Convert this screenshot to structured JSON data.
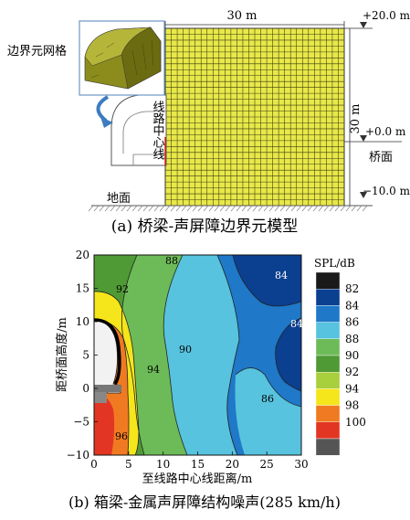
{
  "top": {
    "label_be_mesh": "边界元网格",
    "label_centerline": "线路中心线",
    "label_ground": "地面",
    "dim_width": "30 m",
    "dim_height": "30 m",
    "level_top": "+20.0 m",
    "level_mid": "+0.0 m",
    "label_deck": "桥面",
    "level_bottom": "−10.0 m",
    "caption": "(a) 桥梁-声屏障边界元模型",
    "grid_color": "#e8e84a"
  },
  "bottom": {
    "caption": "(b) 箱梁-金属声屏障结构噪声(285 km/h)",
    "legend_title": "SPL/dB",
    "legend": [
      {
        "label": "82",
        "color": "#1a1a1a"
      },
      {
        "label": "84",
        "color": "#0b3f8f"
      },
      {
        "label": "86",
        "color": "#1f78c8"
      },
      {
        "label": "88",
        "color": "#57c3de"
      },
      {
        "label": "90",
        "color": "#6dbb58"
      },
      {
        "label": "92",
        "color": "#4f9a35"
      },
      {
        "label": "94",
        "color": "#a8cf3c"
      },
      {
        "label": "98",
        "color": "#f5e51b"
      },
      {
        "label": "100",
        "color": "#f07a21"
      },
      {
        "label": "",
        "color": "#e23523"
      },
      {
        "label": "",
        "color": "#555555"
      }
    ],
    "contour_labels": [
      "88",
      "84",
      "92",
      "84",
      "90",
      "94",
      "86",
      "96"
    ]
  },
  "chart_data": {
    "type": "heatmap",
    "title": "",
    "xlabel": "至线路中心线距离/m",
    "ylabel": "距桥面高度/m",
    "xlim": [
      0,
      30
    ],
    "ylim": [
      -10,
      20
    ],
    "x_ticks": [
      "0",
      "5",
      "10",
      "15",
      "20",
      "25",
      "30"
    ],
    "y_ticks": [
      "20",
      "15",
      "10",
      "5",
      "0",
      "−5",
      "−10"
    ],
    "legend_title": "SPL/dB",
    "legend": [
      "82",
      "84",
      "86",
      "88",
      "90",
      "92",
      "94",
      "98",
      "100"
    ],
    "contour_labels": [
      88,
      84,
      92,
      84,
      90,
      94,
      86,
      96
    ]
  }
}
